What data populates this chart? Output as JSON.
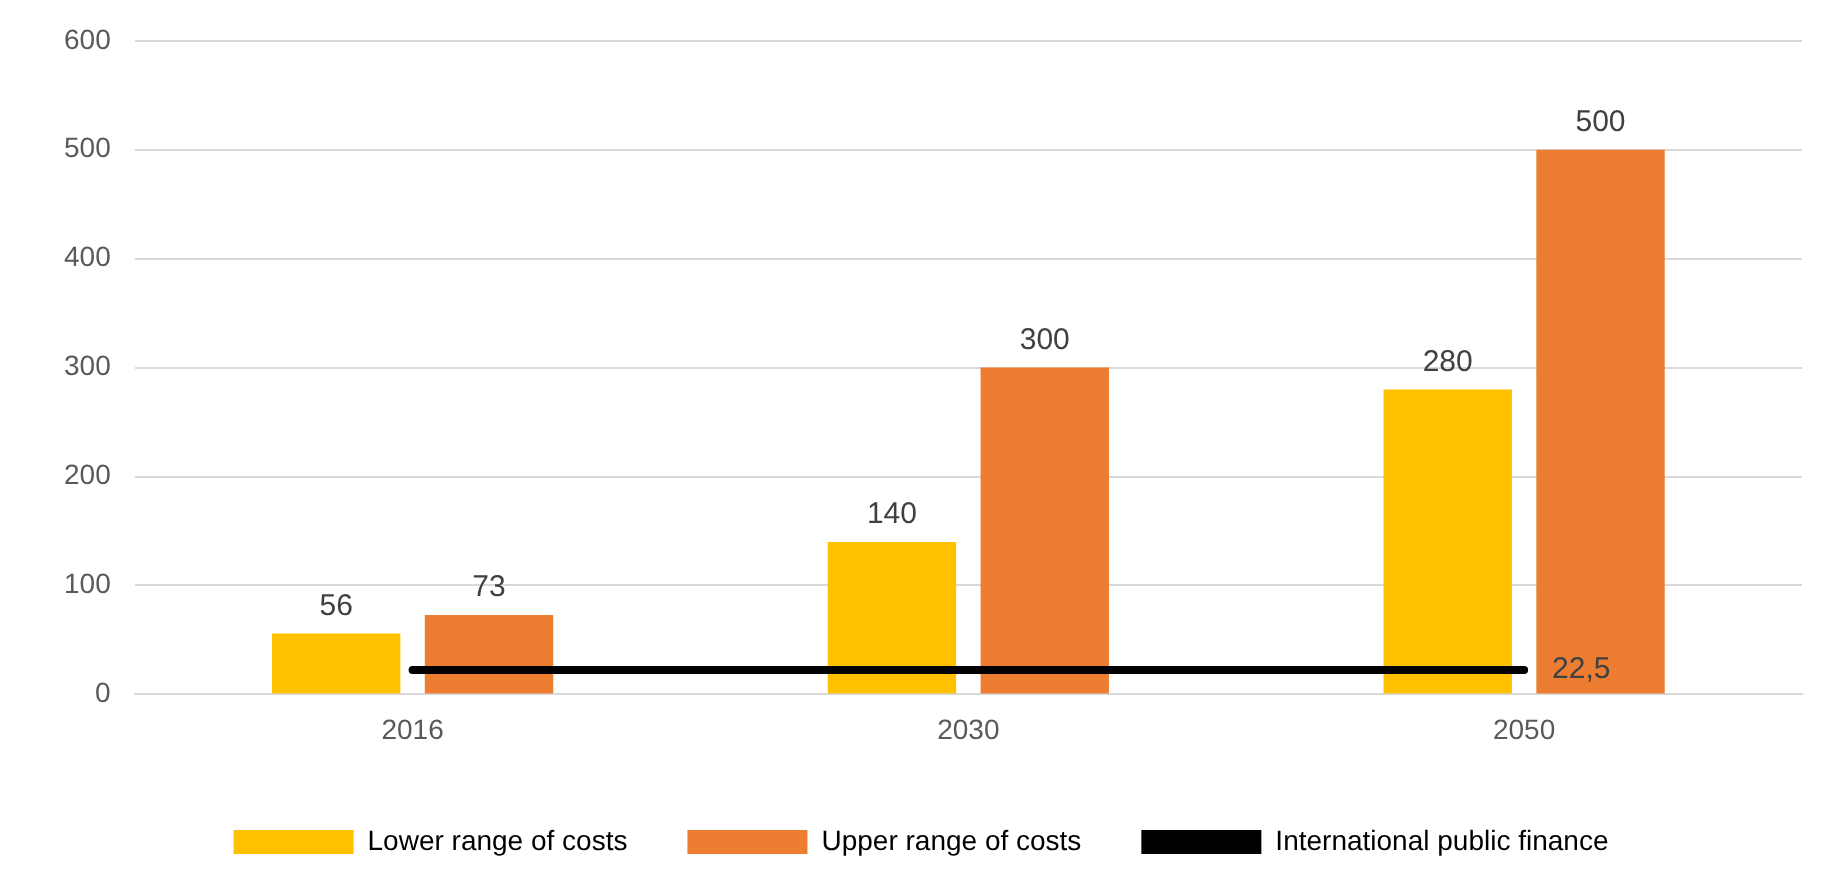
{
  "chart_data": {
    "type": "bar",
    "categories": [
      "2016",
      "2030",
      "2050"
    ],
    "series": [
      {
        "name": "Lower range of costs",
        "color": "#ffc000",
        "values": [
          56,
          140,
          280
        ],
        "value_labels": [
          "56",
          "140",
          "280"
        ]
      },
      {
        "name": "Upper range of costs",
        "color": "#ed7d31",
        "values": [
          73,
          300,
          500
        ],
        "value_labels": [
          "73",
          "300",
          "500"
        ]
      },
      {
        "name": "International public finance",
        "type": "line",
        "color": "#000000",
        "values": [
          22.5,
          22.5,
          22.5
        ],
        "value_labels": [
          null,
          null,
          "22,5"
        ]
      }
    ],
    "ylim": [
      0,
      600
    ],
    "yticks": [
      0,
      100,
      200,
      300,
      400,
      500,
      600
    ],
    "grid": "y",
    "legend": "bottom",
    "marker": "none"
  }
}
